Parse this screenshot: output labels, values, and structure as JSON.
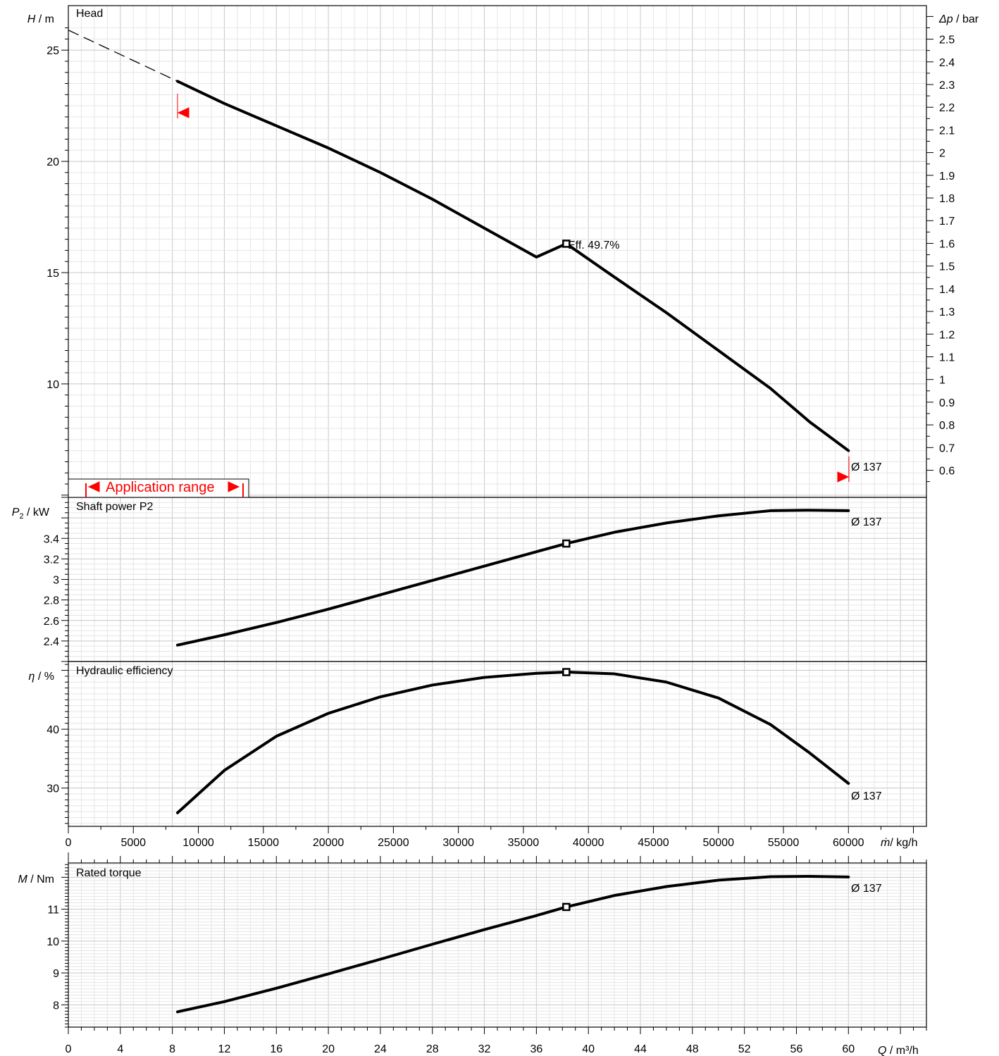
{
  "chart_data": [
    {
      "type": "line",
      "panel": "head",
      "title": "Head",
      "ylabel_symbol": "H",
      "ylabel_unit": " / m",
      "y2label_symbol": "Δp",
      "y2label_unit": " / bar",
      "ylim": [
        4.9,
        27
      ],
      "yticks": [
        10,
        15,
        20,
        25
      ],
      "y2ticks": [
        "0.6",
        "0.7",
        "0.8",
        "0.9",
        "1",
        "1.1",
        "1.2",
        "1.3",
        "1.4",
        "1.5",
        "1.6",
        "1.7",
        "1.8",
        "1.9",
        "2",
        "2.1",
        "2.2",
        "2.3",
        "2.4",
        "2.5"
      ],
      "series": [
        {
          "x": [
            8.4,
            12,
            16,
            20,
            24,
            28,
            32,
            36,
            38.3,
            42,
            46,
            50,
            54,
            57,
            60
          ],
          "y": [
            23.6,
            22.6,
            21.6,
            20.6,
            19.5,
            18.3,
            17.0,
            15.7,
            16.3,
            14.8,
            13.2,
            11.5,
            9.8,
            8.3,
            7.0
          ]
        }
      ],
      "dashed_extension": {
        "x": [
          0,
          8.4
        ],
        "y": [
          25.9,
          23.6
        ]
      },
      "operating_point": {
        "x": 38.3,
        "y": 16.3
      },
      "annotations": [
        "Eff.  49.7%",
        "Ø 137"
      ],
      "application_range_label": "Application range"
    },
    {
      "type": "line",
      "panel": "power",
      "title": "Shaft power P2",
      "ylabel_symbol": "P",
      "ylabel_sub": "2",
      "ylabel_unit": " / kW",
      "ylim": [
        2.2,
        3.8
      ],
      "yticks": [
        "2.4",
        "2.6",
        "2.8",
        "3",
        "3.2",
        "3.4"
      ],
      "series": [
        {
          "x": [
            8.4,
            12,
            16,
            20,
            24,
            28,
            32,
            36,
            38.3,
            42,
            46,
            50,
            54,
            57,
            60
          ],
          "y": [
            2.36,
            2.46,
            2.58,
            2.71,
            2.85,
            2.99,
            3.13,
            3.27,
            3.35,
            3.46,
            3.55,
            3.62,
            3.67,
            3.675,
            3.67
          ]
        }
      ],
      "operating_point": {
        "x": 38.3,
        "y": 3.35
      },
      "annotations": [
        "Ø 137"
      ]
    },
    {
      "type": "line",
      "panel": "efficiency",
      "title": "Hydraulic efficiency",
      "ylabel_symbol": "η",
      "ylabel_unit": " / %",
      "ylim": [
        23.5,
        51.5
      ],
      "yticks": [
        30,
        40
      ],
      "series": [
        {
          "x": [
            8.4,
            10,
            12,
            16,
            20,
            24,
            28,
            32,
            36,
            38.3,
            42,
            46,
            50,
            54,
            57,
            60
          ],
          "y": [
            25.8,
            29.0,
            33.0,
            38.8,
            42.7,
            45.5,
            47.5,
            48.8,
            49.5,
            49.7,
            49.4,
            48.0,
            45.3,
            40.8,
            36.0,
            30.8
          ]
        }
      ],
      "operating_point": {
        "x": 38.3,
        "y": 49.7
      },
      "annotations": [
        "Ø 137"
      ]
    },
    {
      "type": "line",
      "panel": "torque",
      "title": "Rated torque",
      "ylabel_symbol": "M",
      "ylabel_unit": " / Nm",
      "ylim": [
        7.3,
        12.45
      ],
      "yticks": [
        8,
        9,
        10,
        11
      ],
      "series": [
        {
          "x": [
            8.4,
            12,
            16,
            20,
            24,
            28,
            32,
            36,
            38.3,
            42,
            46,
            50,
            54,
            57,
            60
          ],
          "y": [
            7.78,
            8.1,
            8.52,
            8.97,
            9.43,
            9.9,
            10.36,
            10.8,
            11.07,
            11.43,
            11.71,
            11.91,
            12.02,
            12.03,
            12.01
          ]
        }
      ],
      "operating_point": {
        "x": 38.3,
        "y": 11.07
      },
      "annotations": [
        "Ø 137"
      ]
    }
  ],
  "x_axis_mass": {
    "ticks": [
      "0",
      "5000",
      "10000",
      "15000",
      "20000",
      "25000",
      "30000",
      "35000",
      "40000",
      "45000",
      "50000",
      "55000",
      "60000"
    ],
    "label_symbol": "ṁ",
    "label_unit": "/ kg/h"
  },
  "x_axis_flow": {
    "ticks": [
      "0",
      "4",
      "8",
      "12",
      "16",
      "20",
      "24",
      "28",
      "32",
      "36",
      "40",
      "44",
      "48",
      "52",
      "56",
      "60"
    ],
    "label_symbol": "Q",
    "label_unit": " / m³/h",
    "range": [
      0,
      66
    ]
  }
}
